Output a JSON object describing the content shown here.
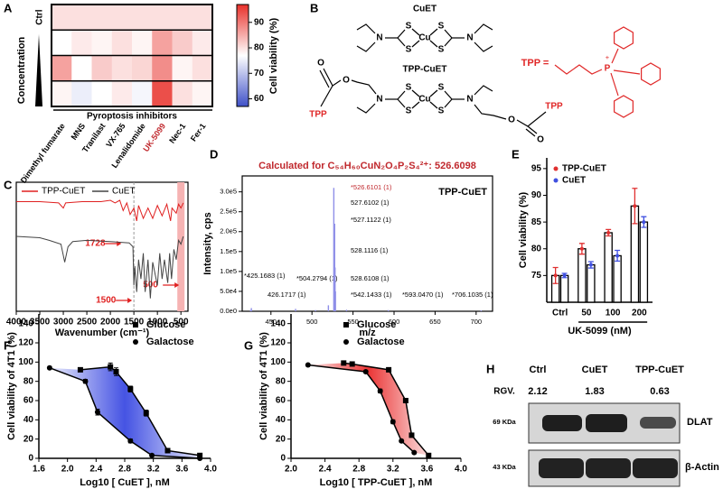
{
  "chart_data": [
    {
      "panel": "A",
      "type": "heatmap",
      "row_labels": [
        "Ctrl",
        null,
        null,
        null
      ],
      "columns": [
        "Dimethyl fumarate",
        "MNS",
        "Tranilast",
        "VX-765",
        "Lenalidomide",
        "UK-5099",
        "Nec-1",
        "Fer-1"
      ],
      "column_colors": [
        "#000000",
        "#000000",
        "#000000",
        "#000000",
        "#000000",
        "#c0282d",
        "#000000",
        "#000000"
      ],
      "values": [
        [
          80,
          80,
          80,
          80,
          80,
          80,
          80,
          80
        ],
        [
          77,
          79,
          78,
          80,
          78,
          86,
          82,
          79
        ],
        [
          86,
          77,
          82,
          80,
          81,
          88,
          78,
          80
        ],
        [
          78,
          75,
          77,
          79,
          76,
          94,
          80,
          78
        ]
      ],
      "group_label": "Pyroptosis inhibitors",
      "axis_label": "Concentration",
      "colorbar_label": "Cell viability (%)",
      "clim": [
        57,
        97
      ],
      "cticks": [
        60,
        70,
        80,
        90
      ],
      "colormap": [
        "#3f51c8",
        "#ffffff",
        "#e8302a"
      ]
    },
    {
      "panel": "C",
      "type": "line",
      "x_label": "Wavenumber (cm⁻¹)",
      "xlim": [
        4000,
        350
      ],
      "xticks": [
        4000,
        3500,
        3000,
        2500,
        2000,
        1500,
        1000,
        500
      ],
      "ylim": [
        0,
        100
      ],
      "series": [
        {
          "name": "TPP-CuET",
          "color": "#e02020",
          "x": [
            4000,
            3500,
            3100,
            3000,
            2950,
            2600,
            2200,
            2000,
            1900,
            1800,
            1728,
            1650,
            1580,
            1500,
            1440,
            1400,
            1300,
            1200,
            1100,
            1000,
            900,
            800,
            720,
            690,
            600,
            550,
            500,
            450
          ],
          "values": [
            85,
            85,
            84,
            80,
            84,
            85,
            85,
            86,
            84,
            86,
            78,
            84,
            75,
            80,
            70,
            82,
            72,
            80,
            72,
            82,
            74,
            83,
            70,
            80,
            76,
            83,
            80,
            84
          ]
        },
        {
          "name": "CuET",
          "color": "#444444",
          "x": [
            4000,
            3500,
            3300,
            3050,
            2970,
            2900,
            2800,
            2500,
            2000,
            1600,
            1520,
            1500,
            1480,
            1440,
            1400,
            1350,
            1300,
            1260,
            1200,
            1150,
            1100,
            1000,
            950,
            900,
            850,
            780,
            740,
            700,
            650,
            600,
            550,
            500,
            450
          ],
          "values": [
            58,
            57,
            55,
            52,
            38,
            50,
            54,
            55,
            54,
            53,
            50,
            20,
            35,
            15,
            40,
            25,
            45,
            15,
            40,
            10,
            38,
            20,
            45,
            25,
            40,
            22,
            45,
            25,
            48,
            40,
            55,
            52,
            58
          ]
        }
      ],
      "annotations": [
        {
          "x": 1728,
          "label": "1728"
        },
        {
          "x": 1500,
          "label": "1500"
        },
        {
          "x": 500,
          "label": "500"
        }
      ],
      "annotation_color": "#e02020"
    },
    {
      "panel": "D",
      "type": "spectrum",
      "title": "Calculated for C₅₄H₆₀CuN₂O₄P₂S₄²⁺: 526.6098",
      "label": "TPP-CuET",
      "x_label": "m/z",
      "y_label": "Intensity, cps",
      "color": "#8f8fe8",
      "accent": "#c0282d",
      "xlim": [
        415,
        720
      ],
      "ylim": [
        0,
        340000
      ],
      "xticks": [
        450,
        500,
        550,
        600,
        650,
        700
      ],
      "yticks": [
        {
          "value": 0,
          "label": "0.0e0"
        },
        {
          "value": 50000,
          "label": "5.0e4"
        },
        {
          "value": 100000,
          "label": "1.0e5"
        },
        {
          "value": 150000,
          "label": "1.5e5"
        },
        {
          "value": 200000,
          "label": "2.0e5"
        },
        {
          "value": 250000,
          "label": "2.5e5"
        },
        {
          "value": 300000,
          "label": "3.0e5"
        }
      ],
      "x": [
        425.17,
        426.17,
        480,
        504.28,
        520,
        526.61,
        527.11,
        527.61,
        528.11,
        528.61,
        542.14,
        593.05,
        706.1
      ],
      "values": [
        3000,
        8000,
        6000,
        3000,
        15000,
        310000,
        120000,
        220000,
        110000,
        50000,
        4000,
        3000,
        2000
      ],
      "peak_labels": [
        "*425.1683 (1)",
        "426.1717 (1)",
        null,
        "*504.2794 (1)",
        null,
        "*526.6101 (1)",
        "*527.1122 (1)",
        "527.6102 (1)",
        "528.1116 (1)",
        "528.6108 (1)",
        "*542.1433 (1)",
        "*593.0470 (1)",
        "*706.1035 (1)"
      ]
    },
    {
      "panel": "E",
      "type": "bar",
      "categories": [
        "Ctrl",
        "50",
        "100",
        "200"
      ],
      "x_label": "UK-5099 (nM)",
      "y_label": "Cell viability (%)",
      "ylim": [
        70,
        97
      ],
      "yticks": [
        75,
        80,
        85,
        90,
        95
      ],
      "series": [
        {
          "name": "TPP-CuET",
          "color": "#e03030",
          "values": [
            75,
            80,
            83,
            88
          ],
          "errors": [
            1.5,
            1,
            0.6,
            3.3
          ]
        },
        {
          "name": "CuET",
          "color": "#4050e0",
          "values": [
            75,
            77,
            78.7,
            85
          ],
          "errors": [
            0.4,
            0.6,
            1,
            1
          ]
        }
      ]
    },
    {
      "panel": "F",
      "type": "dose",
      "x_label": "Log10 [ CuET ], nM",
      "y_label": "Cell viability of 4T1 (%)",
      "xlim": [
        1.6,
        4.0
      ],
      "xticks": [
        1.6,
        {
          "value": 2,
          "label": "2.0"
        },
        2.4,
        2.8,
        3.2,
        3.6,
        {
          "value": 4,
          "label": "4.0"
        }
      ],
      "ylim": [
        0,
        150
      ],
      "yticks": [
        0,
        20,
        40,
        60,
        80,
        100,
        120,
        140
      ],
      "shade_color": "#3040e0",
      "series": [
        {
          "name": "Glucose",
          "marker": "square",
          "x": [
            2.18,
            2.6,
            2.68,
            2.88,
            3.1,
            3.4,
            3.85
          ],
          "values": [
            92,
            95,
            90,
            72,
            47,
            8,
            3
          ],
          "errors": [
            2,
            4,
            4,
            3,
            3,
            2,
            1
          ]
        },
        {
          "name": "Galactose",
          "marker": "circle",
          "x": [
            1.75,
            2.25,
            2.42,
            2.88,
            3.18,
            3.85
          ],
          "values": [
            94,
            80,
            48,
            18,
            3,
            0
          ],
          "errors": [
            1,
            2,
            3,
            2,
            1,
            1
          ]
        }
      ]
    },
    {
      "panel": "G",
      "type": "dose",
      "x_label": "Log10 [ TPP-CuET ], nM",
      "y_label": "Cell viability of 4T1 (%)",
      "xlim": [
        2.0,
        4.0
      ],
      "xticks": [
        {
          "value": 2,
          "label": "2.0"
        },
        2.4,
        2.8,
        3.2,
        3.6,
        {
          "value": 4,
          "label": "4.0"
        }
      ],
      "ylim": [
        0,
        150
      ],
      "yticks": [
        0,
        20,
        40,
        60,
        80,
        100,
        120,
        140
      ],
      "shade_color": "#e82020",
      "series": [
        {
          "name": "Glucose",
          "marker": "square",
          "x": [
            2.62,
            2.72,
            3.15,
            3.35,
            3.42,
            3.62
          ],
          "values": [
            99,
            98,
            92,
            60,
            24,
            3
          ],
          "errors": [
            1,
            1,
            2,
            2,
            2,
            1
          ]
        },
        {
          "name": "Galactose",
          "marker": "circle",
          "x": [
            2.2,
            2.88,
            3.05,
            3.2,
            3.3,
            3.45
          ],
          "values": [
            97,
            90,
            70,
            38,
            18,
            6
          ],
          "errors": [
            1,
            1,
            2,
            2,
            1,
            1
          ]
        }
      ]
    }
  ],
  "diagram": {
    "panel": "B",
    "cuet": "CuET",
    "tpp_cuet": "TPP-CuET",
    "tpp": "TPP =",
    "atoms": [
      "N",
      "S",
      "S",
      "Cu",
      "S",
      "S",
      "N",
      "O",
      "O",
      "N",
      "S",
      "S",
      "Cu",
      "S",
      "S",
      "N",
      "O",
      "O",
      "TPP",
      "TPP",
      "P",
      "+"
    ]
  },
  "blot": {
    "panel": "H",
    "lanes": [
      "Ctrl",
      "CuET",
      "TPP-CuET"
    ],
    "rgv_label": "RGV.",
    "rgv": [
      2.12,
      1.83,
      0.63
    ],
    "markers": [
      "69 KDa",
      "43 KDa"
    ],
    "proteins": [
      "DLAT",
      "β-Actin"
    ]
  }
}
